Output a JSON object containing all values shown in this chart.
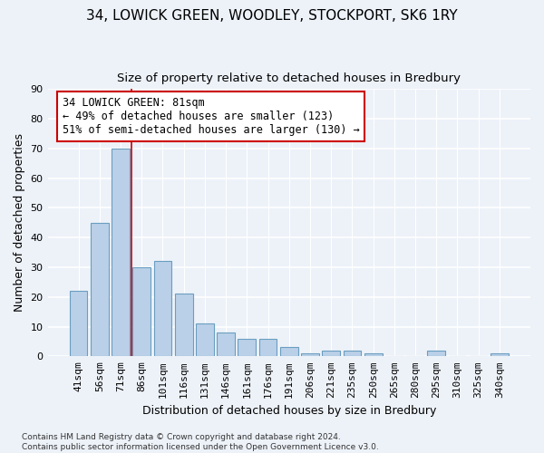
{
  "title1": "34, LOWICK GREEN, WOODLEY, STOCKPORT, SK6 1RY",
  "title2": "Size of property relative to detached houses in Bredbury",
  "xlabel": "Distribution of detached houses by size in Bredbury",
  "ylabel": "Number of detached properties",
  "categories": [
    "41sqm",
    "56sqm",
    "71sqm",
    "86sqm",
    "101sqm",
    "116sqm",
    "131sqm",
    "146sqm",
    "161sqm",
    "176sqm",
    "191sqm",
    "206sqm",
    "221sqm",
    "235sqm",
    "250sqm",
    "265sqm",
    "280sqm",
    "295sqm",
    "310sqm",
    "325sqm",
    "340sqm"
  ],
  "values": [
    22,
    45,
    70,
    30,
    32,
    21,
    11,
    8,
    6,
    6,
    3,
    1,
    2,
    2,
    1,
    0,
    0,
    2,
    0,
    0,
    1
  ],
  "bar_color": "#bad0e8",
  "bar_edge_color": "#6a9ec0",
  "background_color": "#edf2f9",
  "ylim": [
    0,
    90
  ],
  "yticks": [
    0,
    10,
    20,
    30,
    40,
    50,
    60,
    70,
    80,
    90
  ],
  "annotation_text": "34 LOWICK GREEN: 81sqm\n← 49% of detached houses are smaller (123)\n51% of semi-detached houses are larger (130) →",
  "annotation_box_color": "#ffffff",
  "annotation_border_color": "#cc0000",
  "footer_text": "Contains HM Land Registry data © Crown copyright and database right 2024.\nContains public sector information licensed under the Open Government Licence v3.0.",
  "title1_fontsize": 11,
  "title2_fontsize": 9.5,
  "xlabel_fontsize": 9,
  "ylabel_fontsize": 9,
  "tick_fontsize": 8,
  "annotation_fontsize": 8.5,
  "footer_fontsize": 6.5
}
